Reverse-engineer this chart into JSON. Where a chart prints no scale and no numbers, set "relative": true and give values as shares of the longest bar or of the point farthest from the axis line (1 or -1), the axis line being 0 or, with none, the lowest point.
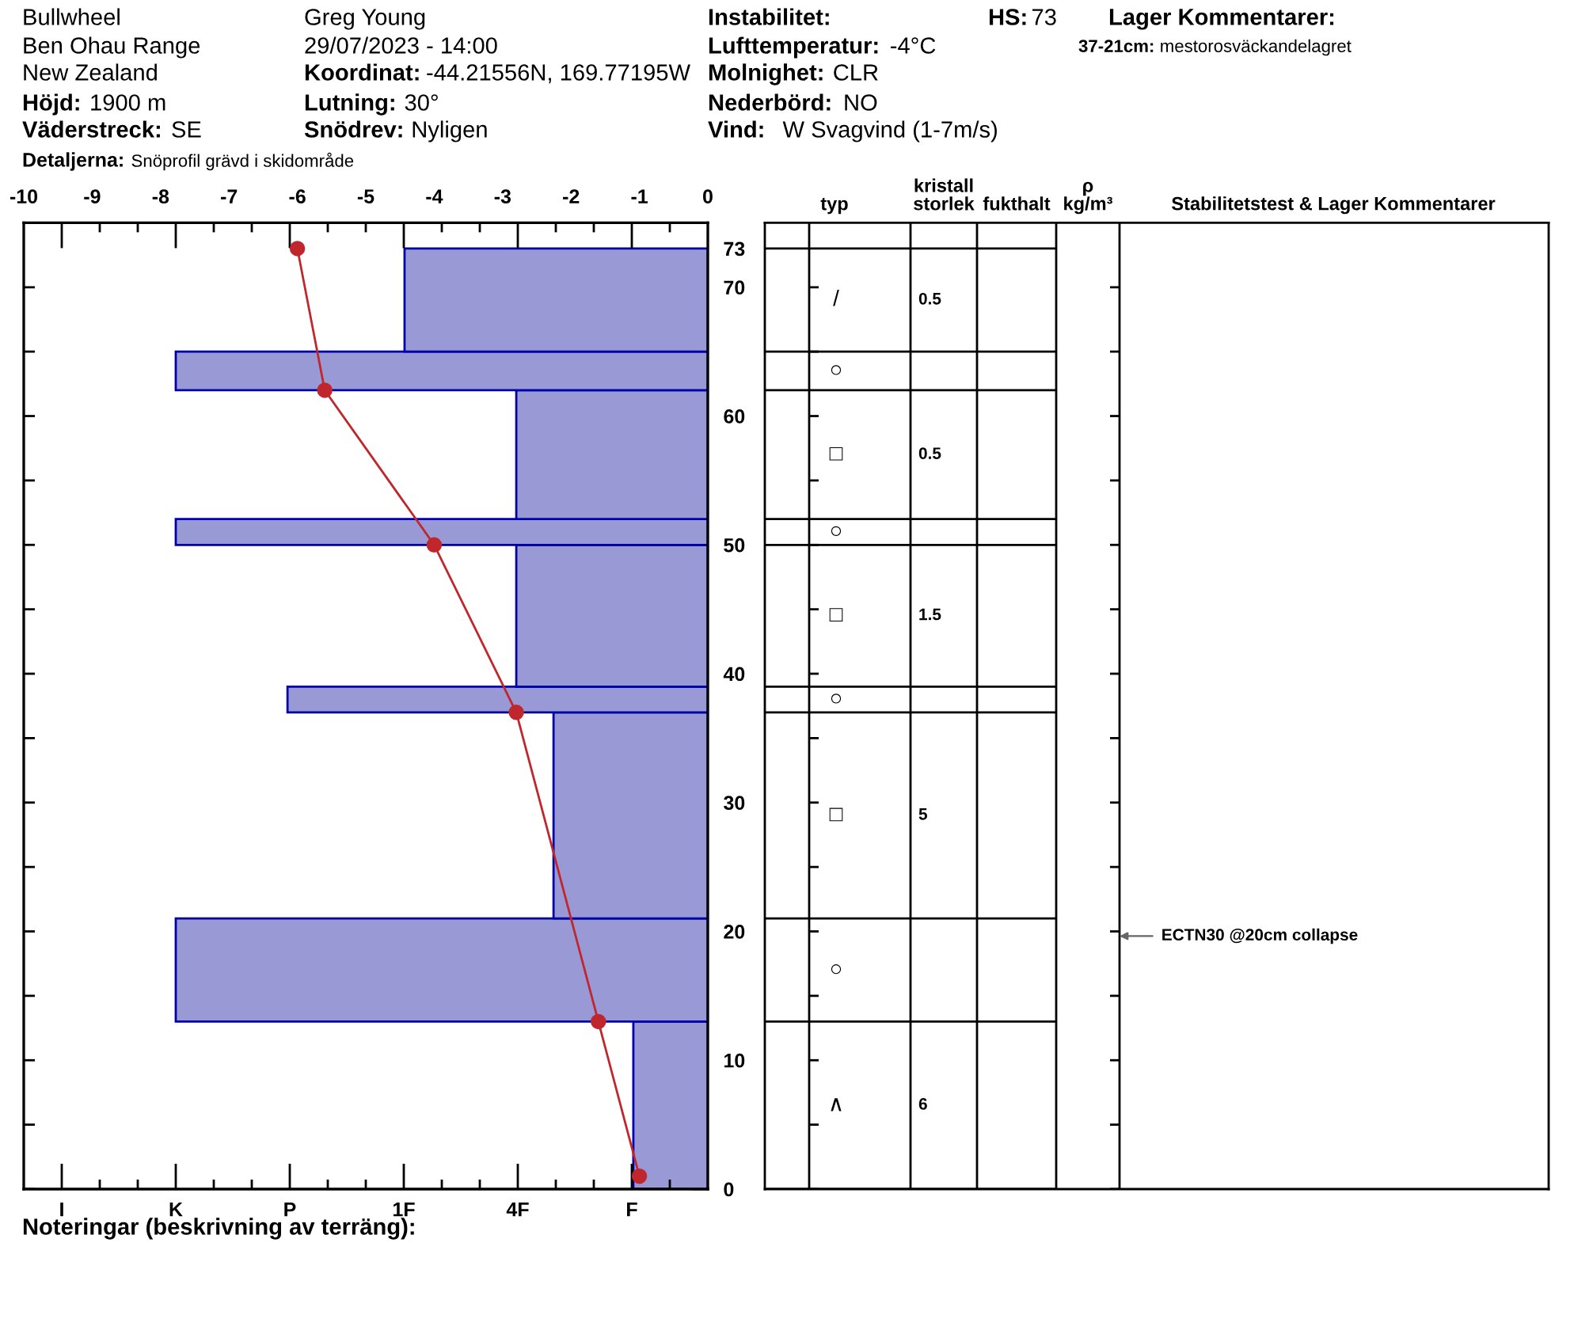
{
  "chart_data": [
    {
      "type": "other",
      "annotations": [
        "Bullwheel",
        "Ben Ohau Range",
        "New Zealand",
        "Höjd:",
        "1900 m",
        "Väderstreck:",
        "SE",
        "Detaljerna:",
        "Snöprofil grävd i skidområde",
        "Greg Young",
        "29/07/2023 - 14:00",
        "Koordinat:",
        "-44.21556N, 169.77195W",
        "Lutning:",
        "30°",
        "Snödrev:",
        "Nyligen",
        "Instabilitet:",
        "Lufttemperatur:",
        "-4°C",
        "Molnighet:",
        "CLR",
        "Nederbörd:",
        "NO",
        "Vind:",
        "W Svagvind (1-7m/s)",
        "HS:",
        "73",
        "Lager Kommentarer:",
        "37-21cm:",
        "mestorosväckandelagret",
        "Noteringar (beskrivning av terräng):"
      ]
    },
    {
      "type": "bar",
      "orientation": "horizontal",
      "relative": true,
      "color": "#9999d6",
      "x": [
        6.5,
        17,
        29,
        38,
        44.5,
        51,
        57,
        63.5,
        69
      ],
      "values": [
        -0.14,
        -1,
        -0.29,
        -0.79,
        -0.36,
        -1,
        -0.36,
        -1,
        -0.57
      ],
      "ylim": [
        0,
        75
      ],
      "yticks": [
        0,
        {
          "value": 5,
          "label": null
        },
        10,
        {
          "value": 15,
          "label": null
        },
        20,
        {
          "value": 25,
          "label": null
        },
        30,
        {
          "value": 35,
          "label": null
        },
        40,
        {
          "value": 45,
          "label": null
        },
        50,
        {
          "value": 55,
          "label": null
        },
        60,
        {
          "value": 65,
          "label": null
        },
        70,
        73
      ],
      "annotations": [
        "I",
        "K",
        "P",
        "1F",
        "4F",
        "F"
      ]
    },
    {
      "type": "line",
      "color": "#c0272d",
      "marker": "circle",
      "x": [
        -6,
        -5.6,
        -4,
        -2.8,
        -1.6,
        -1
      ],
      "values": [
        73,
        62,
        50,
        37,
        13,
        1
      ],
      "xlim": [
        -10,
        0
      ],
      "xticks": [
        -10,
        -9,
        -8,
        -7,
        -6,
        -5,
        -4,
        -3,
        -2,
        -1,
        0
      ],
      "ylim": [
        0,
        75
      ],
      "tick_labels": "x"
    },
    {
      "type": "other",
      "categories": [
        null,
        "typ",
        "kristall\nstorlek",
        "fukthalt",
        "ρ\nkg/m³",
        "Stabilitetstest & Lager Kommentarer"
      ],
      "cell_labels": [
        [
          null,
          "/",
          "0.5",
          null,
          null,
          null
        ],
        [
          null,
          "○",
          null,
          null,
          null,
          null
        ],
        [
          null,
          "□",
          "0.5",
          null,
          null,
          null
        ],
        [
          null,
          "○",
          null,
          null,
          null,
          null
        ],
        [
          null,
          "□",
          "1.5",
          null,
          null,
          null
        ],
        [
          null,
          "○",
          null,
          null,
          null,
          null
        ],
        [
          null,
          "□",
          "5",
          null,
          null,
          null
        ],
        [
          null,
          "○",
          null,
          null,
          null,
          "ECTN30 @20cm collapse"
        ],
        [
          null,
          "∧",
          "6",
          null,
          null,
          null
        ]
      ]
    }
  ]
}
